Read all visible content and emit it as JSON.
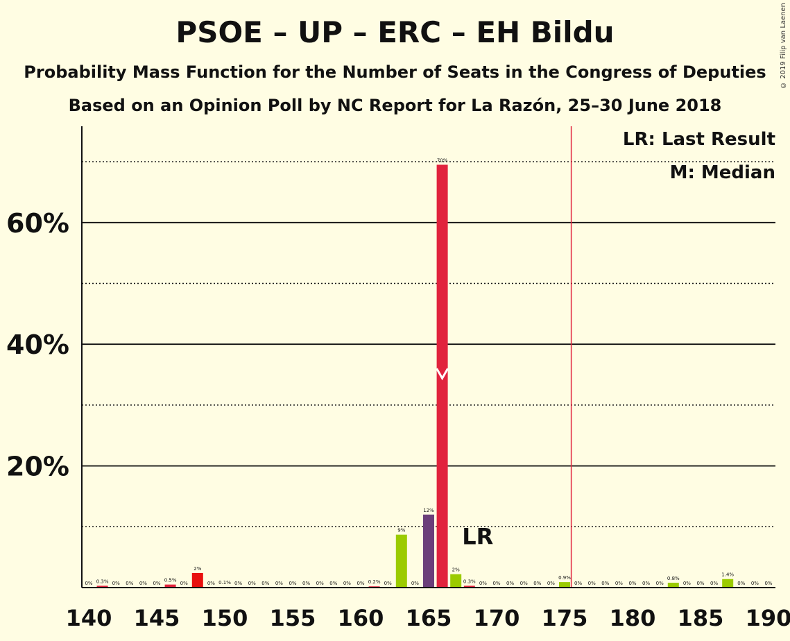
{
  "header": {
    "title": "PSOE – UP – ERC – EH Bildu",
    "subtitle": "Probability Mass Function for the Number of Seats in the Congress of Deputies",
    "source": "Based on an Opinion Poll by NC Report for La Razón, 25–30 June 2018"
  },
  "copyright": "© 2019 Filip van Laenen",
  "legend": {
    "last_result": "LR: Last Result",
    "median": "M: Median",
    "lr_marker": "LR"
  },
  "colors": {
    "background": "#FFFDE3",
    "psoe": "#E1233D",
    "up": "#6B3F7A",
    "red": "#E8100F",
    "bildu": "#9BCB00",
    "last_result_line": "#E1233D"
  },
  "chart_data": {
    "type": "bar",
    "xlabel": "",
    "ylabel": "",
    "x_ticks": [
      "140",
      "145",
      "150",
      "155",
      "160",
      "165",
      "170",
      "175",
      "180",
      "185",
      "190"
    ],
    "y_ticks": [
      "20%",
      "40%",
      "60%"
    ],
    "xlim": [
      140,
      190
    ],
    "ylim": [
      0,
      76
    ],
    "gridlines_solid": [
      20,
      40,
      60
    ],
    "gridlines_dotted": [
      10,
      30,
      50,
      70
    ],
    "last_result": 176,
    "median": 166,
    "x": [
      140,
      141,
      142,
      143,
      144,
      145,
      146,
      147,
      148,
      149,
      150,
      151,
      152,
      153,
      154,
      155,
      156,
      157,
      158,
      159,
      160,
      161,
      162,
      163,
      164,
      165,
      166,
      167,
      168,
      169,
      170,
      171,
      172,
      173,
      174,
      175,
      176,
      177,
      178,
      179,
      180,
      181,
      182,
      183,
      184,
      185,
      186,
      187,
      188,
      189,
      190
    ],
    "values": [
      0,
      0.3,
      0,
      0,
      0,
      0,
      0.5,
      0,
      2.4,
      0,
      0.1,
      0,
      0,
      0,
      0,
      0,
      0,
      0,
      0,
      0,
      0,
      0.2,
      0,
      8.7,
      0,
      12,
      69.5,
      2.2,
      0.3,
      0,
      0,
      0,
      0,
      0,
      0,
      0.9,
      0,
      0,
      0,
      0,
      0,
      0,
      0,
      0.8,
      0,
      0,
      0,
      1.4,
      0,
      0,
      0
    ],
    "labels": [
      "0%",
      "0.3%",
      "0%",
      "0%",
      "0%",
      "0%",
      "0.5%",
      "0%",
      "2%",
      "0%",
      "0.1%",
      "0%",
      "0%",
      "0%",
      "0%",
      "0%",
      "0%",
      "0%",
      "0%",
      "0%",
      "0%",
      "0.2%",
      "0%",
      "9%",
      "0%",
      "12%",
      "70%",
      "2%",
      "0.3%",
      "0%",
      "0%",
      "0%",
      "0%",
      "0%",
      "0%",
      "0.9%",
      "0%",
      "0%",
      "0%",
      "0%",
      "0%",
      "0%",
      "0%",
      "0.8%",
      "0%",
      "0%",
      "0%",
      "1.4%",
      "0%",
      "0%",
      "0%"
    ],
    "bar_colors": {
      "141": "#E1233D",
      "146": "#E1233D",
      "148": "#E8100F",
      "151": "#E1233D",
      "161": "#E1233D",
      "163": "#9BCB00",
      "165": "#6B3F7A",
      "166": "#E1233D",
      "167": "#9BCB00",
      "168": "#E1233D",
      "175": "#9BCB00",
      "183": "#9BCB00",
      "187": "#9BCB00"
    }
  }
}
